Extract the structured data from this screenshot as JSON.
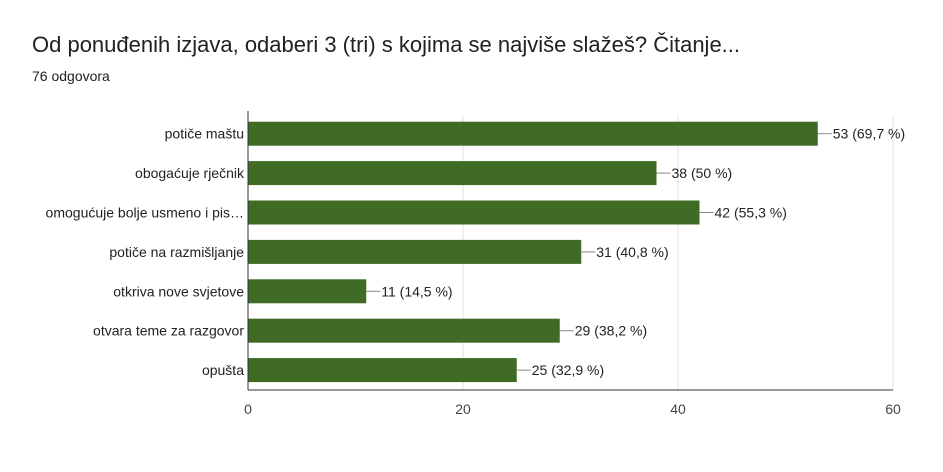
{
  "header": {
    "title": "Od ponuđenih izjava, odaberi 3 (tri) s kojima se najviše slažeš? Čitanje...",
    "response_count": "76 odgovora"
  },
  "chart_data": {
    "type": "bar",
    "orientation": "horizontal",
    "categories": [
      "potiče maštu",
      "obogaćuje rječnik",
      "omogućuje bolje usmeno i pis…",
      "potiče na razmišljanje",
      "otkriva nove svjetove",
      "otvara teme za razgovor",
      "opušta"
    ],
    "values": [
      53,
      38,
      42,
      31,
      11,
      29,
      25
    ],
    "value_labels": [
      "53 (69,7 %)",
      "38 (50 %)",
      "42 (55,3 %)",
      "31 (40,8 %)",
      "11 (14,5 %)",
      "29 (38,2 %)",
      "25 (32,9 %)"
    ],
    "xlim": [
      0,
      60
    ],
    "xticks": [
      0,
      20,
      40,
      60
    ],
    "bar_color": "#3f6b25",
    "grid": true
  }
}
